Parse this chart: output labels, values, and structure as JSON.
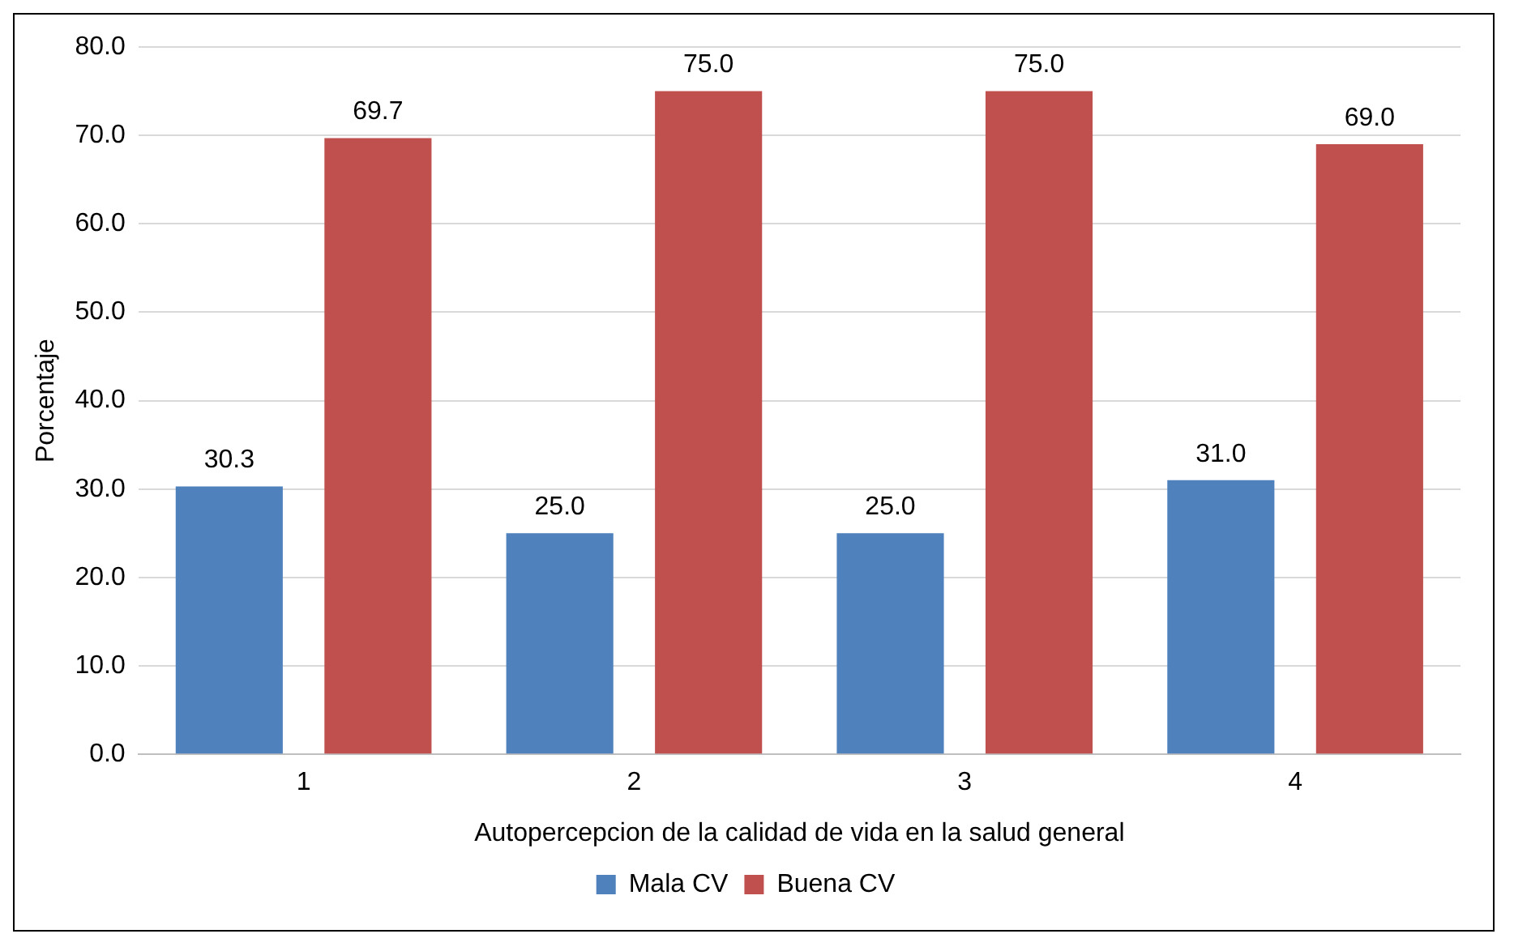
{
  "chart_data": {
    "type": "bar",
    "xlabel": "Autopercepcion de la calidad de vida en la salud general",
    "ylabel": "Porcentaje",
    "categories": [
      "1",
      "2",
      "3",
      "4"
    ],
    "series": [
      {
        "name": "Mala CV",
        "color": "#4f81bd",
        "values": [
          30.3,
          25.0,
          25.0,
          31.0
        ],
        "value_labels": [
          "30.3",
          "25.0",
          "25.0",
          "31.0"
        ]
      },
      {
        "name": "Buena CV",
        "color": "#c0504d",
        "values": [
          69.7,
          75.0,
          75.0,
          69.0
        ],
        "value_labels": [
          "69.7",
          "75.0",
          "75.0",
          "69.0"
        ]
      }
    ],
    "ylim": [
      0,
      80
    ],
    "yticks": [
      {
        "value": 0,
        "label": "0.0"
      },
      {
        "value": 10,
        "label": "10.0"
      },
      {
        "value": 20,
        "label": "20.0"
      },
      {
        "value": 30,
        "label": "30.0"
      },
      {
        "value": 40,
        "label": "40.0"
      },
      {
        "value": 50,
        "label": "50.0"
      },
      {
        "value": 60,
        "label": "60.0"
      },
      {
        "value": 70,
        "label": "70.0"
      },
      {
        "value": 80,
        "label": "80.0"
      }
    ],
    "grid": "y",
    "legend": "bottom"
  }
}
